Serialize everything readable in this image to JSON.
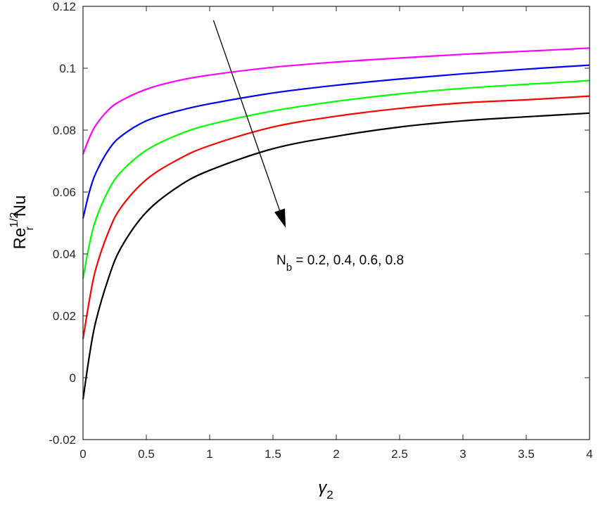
{
  "chart_data": {
    "type": "line",
    "xlim": [
      0,
      4
    ],
    "ylim": [
      -0.02,
      0.12
    ],
    "x_ticks": [
      "0",
      "0.5",
      "1",
      "1.5",
      "2",
      "2.5",
      "3",
      "3.5",
      "4"
    ],
    "y_ticks": [
      "-0.02",
      "0",
      "0.02",
      "0.04",
      "0.06",
      "0.08",
      "0.1",
      "0.12"
    ],
    "xlabel": {
      "base": "γ",
      "sub": "2"
    },
    "ylabel": {
      "base": "Re",
      "sub": "r",
      "sup": "1/2",
      "tail": "Nu"
    },
    "annotation": {
      "base": "N",
      "sub": "b",
      "rest": " = 0.2, 0.4, 0.6, 0.8"
    },
    "grid": false,
    "series": [
      {
        "color": "#ff00ff",
        "x": [
          0,
          0.05,
          0.1,
          0.2,
          0.3,
          0.5,
          0.75,
          1,
          1.5,
          2,
          2.5,
          3,
          3.5,
          4
        ],
        "y": [
          0.0722,
          0.0775,
          0.0815,
          0.0865,
          0.0895,
          0.0932,
          0.096,
          0.0978,
          0.1003,
          0.102,
          0.1033,
          0.1045,
          0.1055,
          0.1065
        ]
      },
      {
        "color": "#0000ff",
        "x": [
          0,
          0.05,
          0.1,
          0.2,
          0.3,
          0.5,
          0.75,
          1,
          1.5,
          2,
          2.5,
          3,
          3.5,
          4
        ],
        "y": [
          0.0515,
          0.06,
          0.066,
          0.0735,
          0.078,
          0.083,
          0.0862,
          0.0885,
          0.092,
          0.0945,
          0.0965,
          0.0982,
          0.0997,
          0.101
        ]
      },
      {
        "color": "#00ff00",
        "x": [
          0,
          0.05,
          0.1,
          0.2,
          0.3,
          0.5,
          0.75,
          1,
          1.5,
          2,
          2.5,
          3,
          3.5,
          4
        ],
        "y": [
          0.032,
          0.043,
          0.051,
          0.0605,
          0.0665,
          0.0735,
          0.0785,
          0.0818,
          0.0862,
          0.0893,
          0.0917,
          0.0935,
          0.0948,
          0.096
        ]
      },
      {
        "color": "#ff0000",
        "x": [
          0,
          0.05,
          0.1,
          0.2,
          0.3,
          0.5,
          0.75,
          1,
          1.5,
          2,
          2.5,
          3,
          3.5,
          4
        ],
        "y": [
          0.0125,
          0.025,
          0.035,
          0.047,
          0.055,
          0.064,
          0.0705,
          0.075,
          0.081,
          0.0845,
          0.087,
          0.0888,
          0.0898,
          0.091
        ]
      },
      {
        "color": "#000000",
        "x": [
          0,
          0.05,
          0.1,
          0.2,
          0.3,
          0.5,
          0.75,
          1,
          1.5,
          2,
          2.5,
          3,
          3.5,
          4
        ],
        "y": [
          -0.007,
          0.007,
          0.018,
          0.032,
          0.042,
          0.0535,
          0.0617,
          0.067,
          0.074,
          0.078,
          0.081,
          0.083,
          0.0843,
          0.0855
        ]
      }
    ],
    "arrow": {
      "from": [
        1.03,
        0.1155
      ],
      "to": [
        1.6,
        0.0485
      ]
    }
  }
}
